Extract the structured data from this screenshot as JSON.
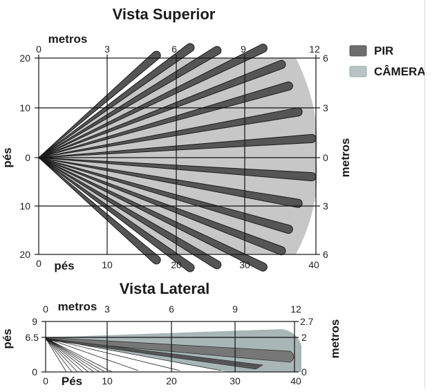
{
  "colors": {
    "pir": "#555555",
    "camera": "#c7c7c7",
    "legend_camera": "#b8c3c3",
    "side_camera": "#a9b6b6"
  },
  "top_view": {
    "title": "Vista Superior",
    "label_top": "metros",
    "label_left": "pés",
    "label_right": "metros",
    "label_bottom": "pés",
    "top_ticks": [
      "0",
      "3",
      "6",
      "9",
      "12"
    ],
    "bottom_ticks": [
      "0",
      "10",
      "20",
      "30",
      "40"
    ],
    "left_ticks": [
      "20",
      "10",
      "0",
      "10",
      "20"
    ],
    "right_ticks": [
      "6",
      "3",
      "0",
      "3",
      "6"
    ],
    "pir_ranges_ft": [
      22.5,
      27,
      30,
      36,
      37.5,
      37.5,
      38,
      39.5,
      39.5,
      38,
      37.5,
      37.5,
      36,
      30,
      27,
      22.5
    ],
    "pir_angles_deg": [
      -41,
      -36,
      -31,
      -26,
      -21,
      -16,
      -10,
      -4,
      4,
      10,
      16,
      21,
      26,
      31,
      36,
      41
    ],
    "camera_range_ft": 40
  },
  "legend": {
    "pir_label": "PIR",
    "camera_label": "CÂMERA"
  },
  "side_view": {
    "title": "Vista Lateral",
    "label_top": "metros",
    "label_left": "pés",
    "label_right": "metros",
    "label_bottom": "Pés",
    "top_ticks": [
      "0",
      "3",
      "6",
      "9",
      "12"
    ],
    "bottom_ticks": [
      "0",
      "10",
      "20",
      "30",
      "40"
    ],
    "left_ticks": [
      "9",
      "6.5",
      "0"
    ],
    "right_ticks": [
      "2.7",
      "2",
      "0"
    ],
    "mount_height_ft": 6.5
  }
}
